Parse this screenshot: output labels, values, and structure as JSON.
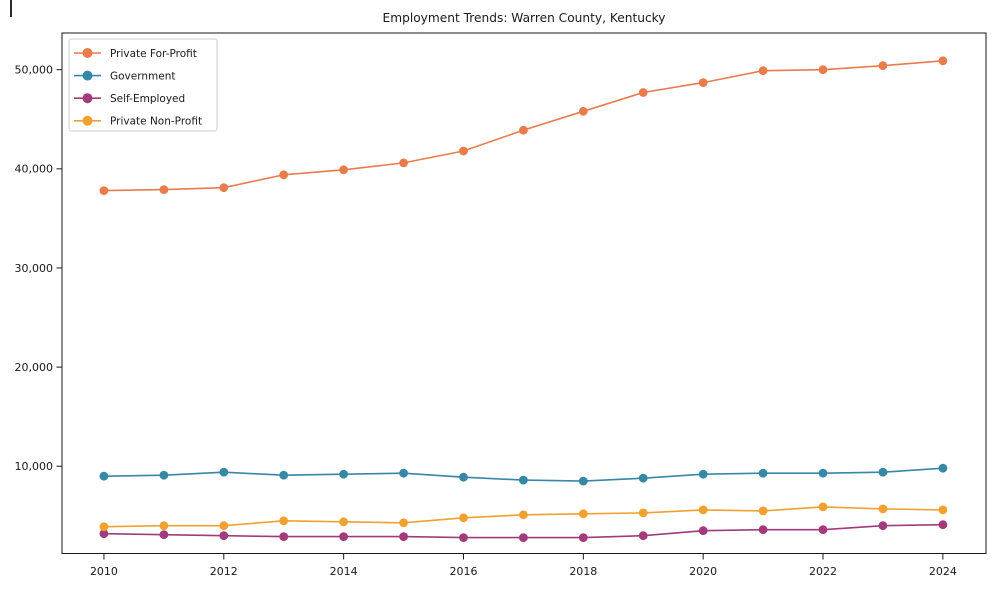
{
  "figure": {
    "title": "Employment Trends: Warren County, Kentucky",
    "background": "#ffffff"
  },
  "chart_data": {
    "type": "line",
    "title": "Employment Trends: Warren County, Kentucky",
    "xlabel": "",
    "ylabel": "",
    "x_years": [
      2010,
      2011,
      2012,
      2013,
      2014,
      2015,
      2016,
      2017,
      2018,
      2019,
      2020,
      2021,
      2022,
      2023,
      2024
    ],
    "series": [
      {
        "name": "Private For-Profit",
        "color": "#E97C4D",
        "values": [
          37800,
          37900,
          38100,
          39400,
          39900,
          40600,
          41800,
          43900,
          45800,
          47700,
          48700,
          49900,
          50000,
          50400,
          50900
        ]
      },
      {
        "name": "Government",
        "color": "#3787A6",
        "values": [
          9000,
          9100,
          9400,
          9100,
          9200,
          9300,
          8900,
          8600,
          8500,
          8800,
          9200,
          9300,
          9300,
          9400,
          9800
        ]
      },
      {
        "name": "Self-Employed",
        "color": "#A13B7C",
        "values": [
          3200,
          3100,
          3000,
          2900,
          2900,
          2900,
          2800,
          2800,
          2800,
          3000,
          3500,
          3600,
          3600,
          4000,
          4100
        ]
      },
      {
        "name": "Private Non-Profit",
        "color": "#F0A12F",
        "values": [
          3900,
          4000,
          4000,
          4500,
          4400,
          4300,
          4800,
          5100,
          5200,
          5300,
          5600,
          5500,
          5900,
          5700,
          5600
        ]
      }
    ],
    "xticks": {
      "values": [
        2010,
        2012,
        2014,
        2016,
        2018,
        2020,
        2022,
        2024
      ],
      "labels": [
        "2010",
        "2012",
        "2014",
        "2016",
        "2018",
        "2020",
        "2022",
        "2024"
      ]
    },
    "yticks": {
      "values": [
        10000,
        20000,
        30000,
        40000,
        50000
      ],
      "labels": [
        "10,000",
        "20,000",
        "30,000",
        "40,000",
        "50,000"
      ]
    },
    "xlim": [
      2009.3,
      2024.72
    ],
    "ylim": [
      1200,
      53700
    ],
    "grid": false,
    "marker": "circle",
    "legend": {
      "position": "upper left"
    },
    "axis_color": "#1a1a1a",
    "text_color": "#1a1a1a",
    "legend_border_color": "#cccccc"
  }
}
